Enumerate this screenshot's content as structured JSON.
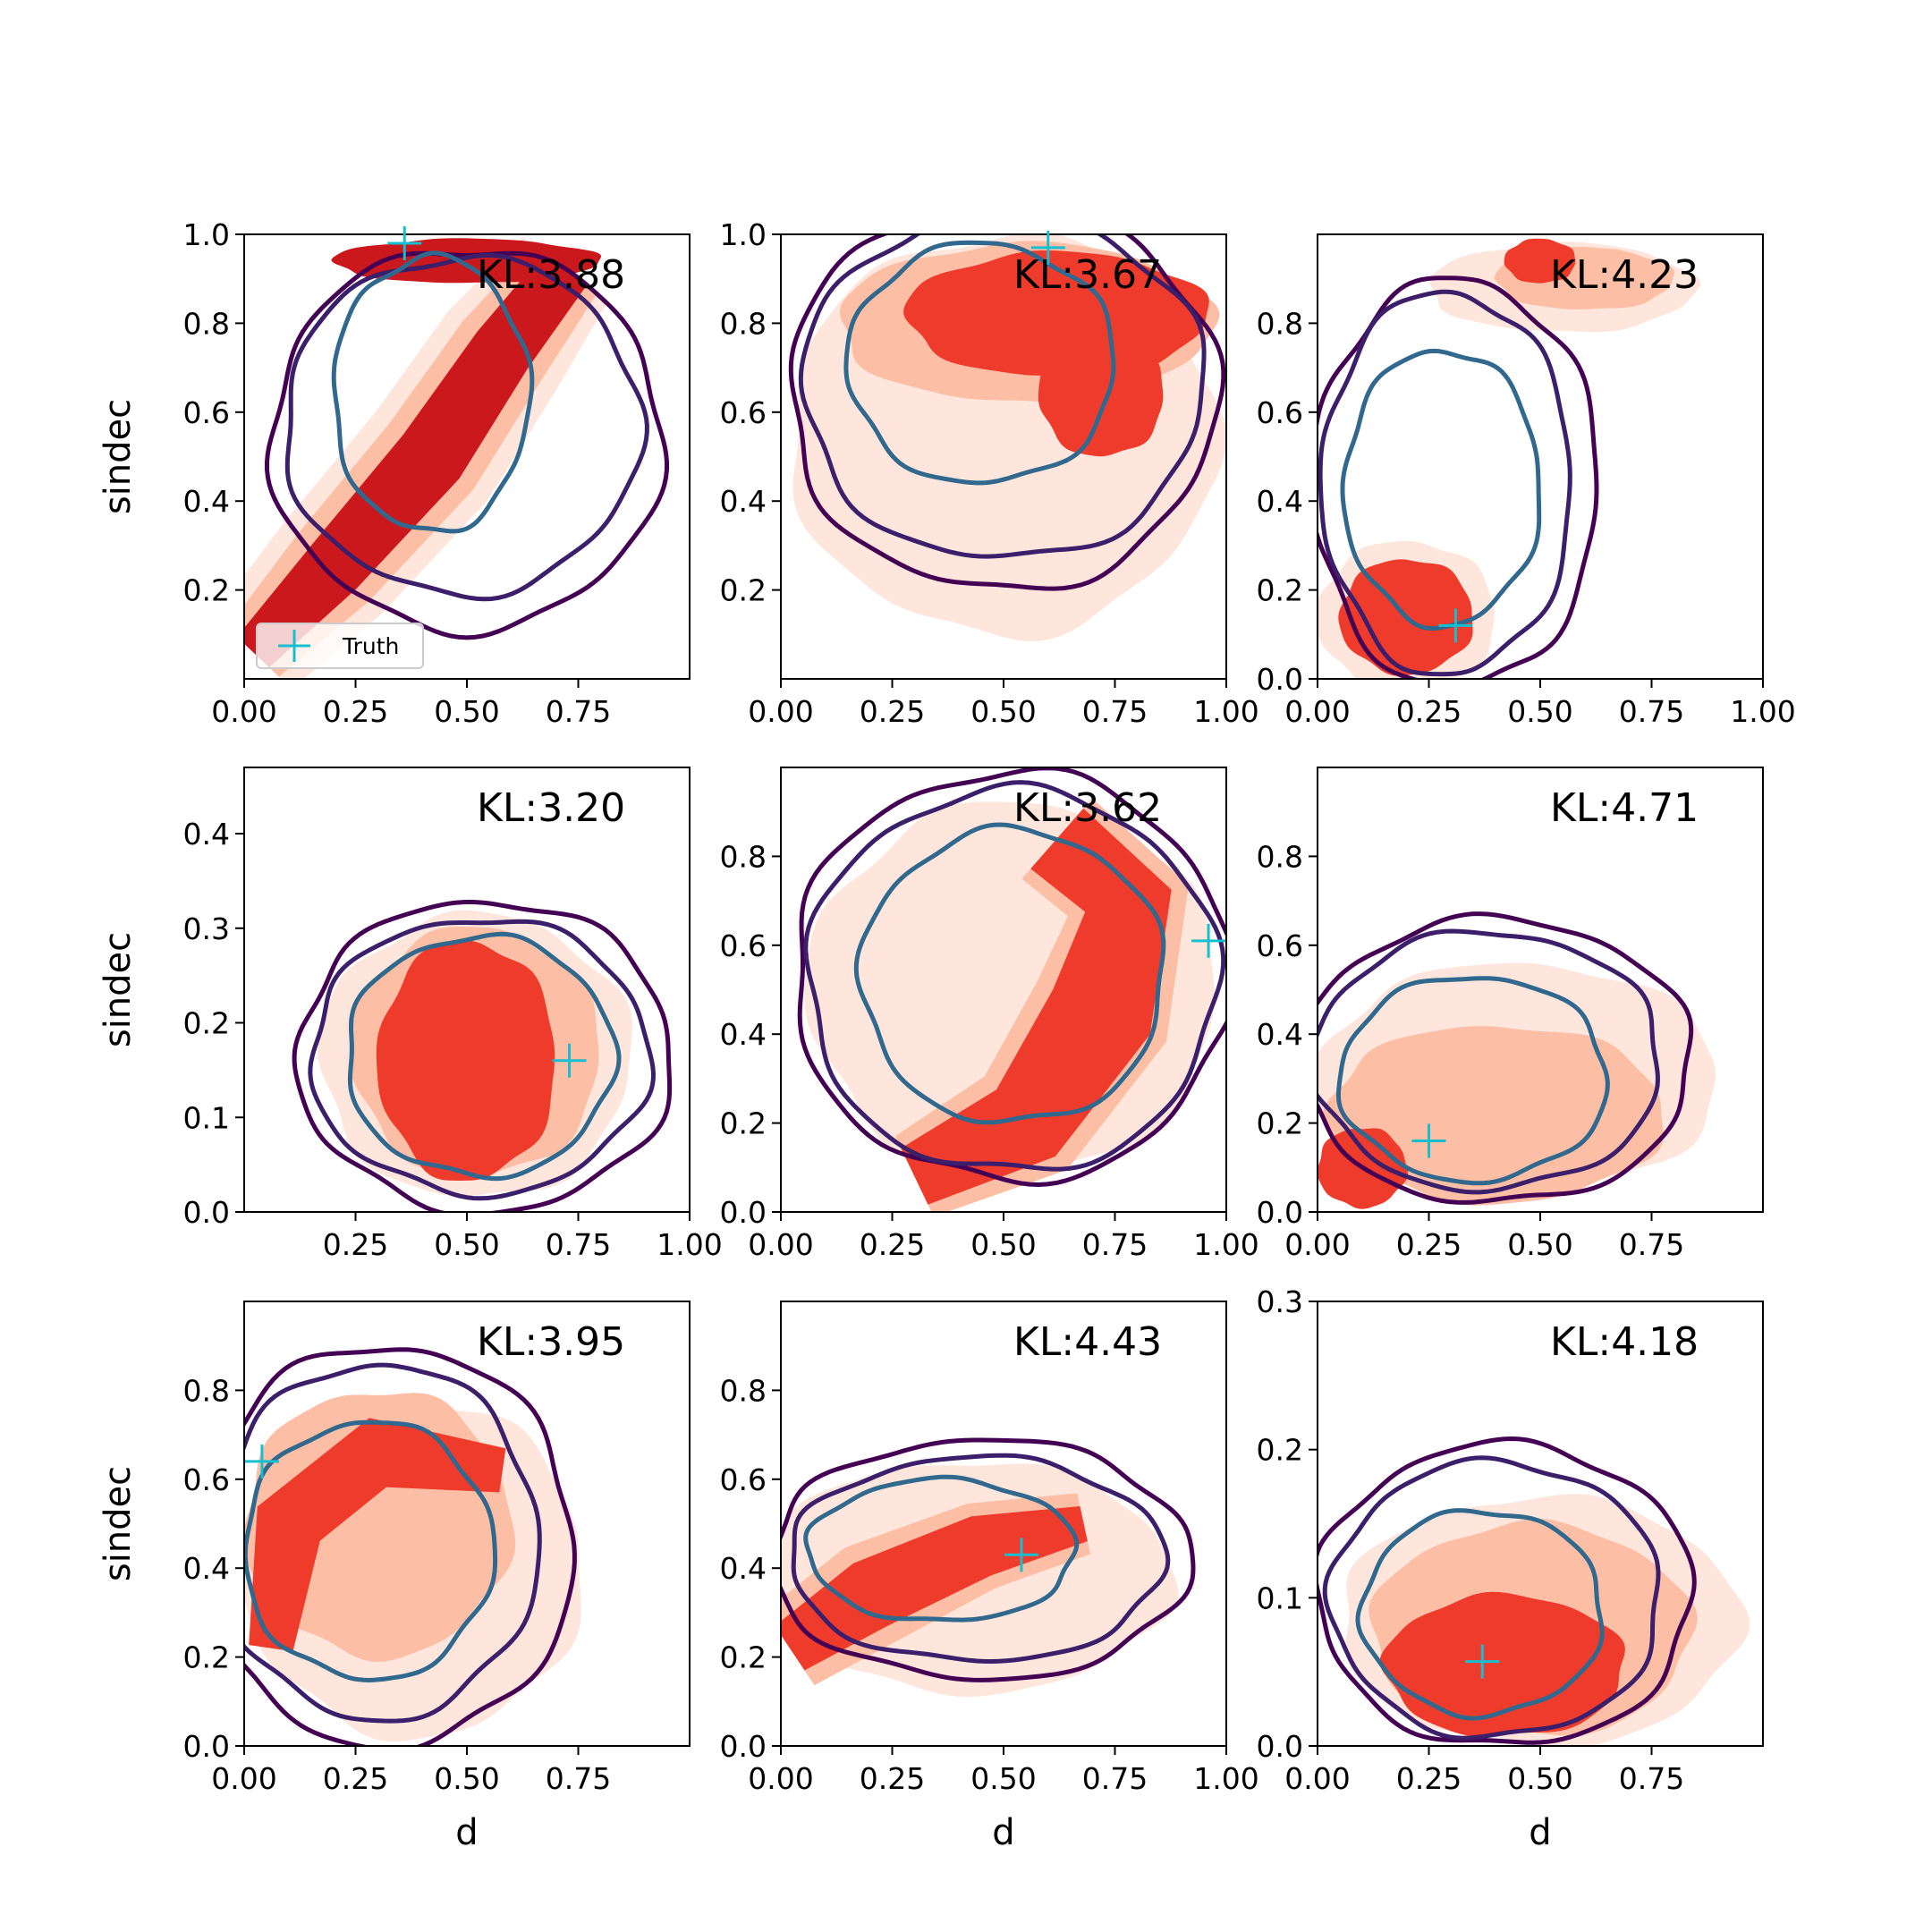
{
  "chart_data": {
    "type": "contour",
    "grid": "3x3",
    "ylabel": "sindec",
    "xlabel": "d",
    "legend": {
      "label": "Truth",
      "marker": "+",
      "color": "#17becf",
      "placement": "lower-left",
      "panel": 0
    },
    "colors": {
      "fill_levels": [
        "#fee6dc",
        "#fcbfa6",
        "#ef3b2c",
        "#cb181d"
      ],
      "contour_outer": "#440154",
      "contour_mid": "#3b1f6b",
      "contour_inner": "#31688e",
      "truth": "#17becf"
    },
    "panels": [
      {
        "kl": "KL:3.88",
        "xlim": [
          0,
          1.0
        ],
        "ylim": [
          0,
          1.0
        ],
        "xticks": [
          "0.00",
          "0.25",
          "0.50",
          "0.75"
        ],
        "yticks": [
          "0.2",
          "0.4",
          "0.6",
          "0.8",
          "1.0"
        ],
        "truth": [
          0.36,
          0.98
        ],
        "show_ylabel": true,
        "show_xlabel": false
      },
      {
        "kl": "KL:3.67",
        "xlim": [
          0,
          1.0
        ],
        "ylim": [
          0,
          1.0
        ],
        "xticks": [
          "0.00",
          "0.25",
          "0.50",
          "0.75",
          "1.00"
        ],
        "yticks": [
          "0.2",
          "0.4",
          "0.6",
          "0.8",
          "1.0"
        ],
        "truth": [
          0.6,
          0.97
        ],
        "show_ylabel": false,
        "show_xlabel": false
      },
      {
        "kl": "KL:4.23",
        "xlim": [
          0,
          1.0
        ],
        "ylim": [
          0,
          1.0
        ],
        "xticks": [
          "0.00",
          "0.25",
          "0.50",
          "0.75",
          "1.00"
        ],
        "yticks": [
          "0.0",
          "0.2",
          "0.4",
          "0.6",
          "0.8"
        ],
        "truth": [
          0.31,
          0.12
        ],
        "show_ylabel": false,
        "show_xlabel": false
      },
      {
        "kl": "KL:3.20",
        "xlim": [
          0,
          1.0
        ],
        "ylim": [
          0,
          0.47
        ],
        "xticks": [
          "0.25",
          "0.50",
          "0.75",
          "1.00"
        ],
        "yticks": [
          "0.0",
          "0.1",
          "0.2",
          "0.3",
          "0.4"
        ],
        "truth": [
          0.73,
          0.16
        ],
        "show_ylabel": true,
        "show_xlabel": false
      },
      {
        "kl": "KL:3.62",
        "xlim": [
          0,
          1.0
        ],
        "ylim": [
          0,
          1.0
        ],
        "xticks": [
          "0.00",
          "0.25",
          "0.50",
          "0.75",
          "1.00"
        ],
        "yticks": [
          "0.0",
          "0.2",
          "0.4",
          "0.6",
          "0.8"
        ],
        "truth": [
          0.96,
          0.61
        ],
        "show_ylabel": false,
        "show_xlabel": false
      },
      {
        "kl": "KL:4.71",
        "xlim": [
          0,
          1.0
        ],
        "ylim": [
          0,
          1.0
        ],
        "xticks": [
          "0.00",
          "0.25",
          "0.50",
          "0.75"
        ],
        "yticks": [
          "0.0",
          "0.2",
          "0.4",
          "0.6",
          "0.8"
        ],
        "truth": [
          0.25,
          0.16
        ],
        "show_ylabel": false,
        "show_xlabel": false
      },
      {
        "kl": "KL:3.95",
        "xlim": [
          0,
          1.0
        ],
        "ylim": [
          0,
          1.0
        ],
        "xticks": [
          "0.00",
          "0.25",
          "0.50",
          "0.75"
        ],
        "yticks": [
          "0.0",
          "0.2",
          "0.4",
          "0.6",
          "0.8"
        ],
        "truth": [
          0.04,
          0.64
        ],
        "show_ylabel": true,
        "show_xlabel": true
      },
      {
        "kl": "KL:4.43",
        "xlim": [
          0,
          1.0
        ],
        "ylim": [
          0,
          1.0
        ],
        "xticks": [
          "0.00",
          "0.25",
          "0.50",
          "0.75",
          "1.00"
        ],
        "yticks": [
          "0.0",
          "0.2",
          "0.4",
          "0.6",
          "0.8"
        ],
        "truth": [
          0.54,
          0.43
        ],
        "show_ylabel": false,
        "show_xlabel": true
      },
      {
        "kl": "KL:4.18",
        "xlim": [
          0,
          1.0
        ],
        "ylim": [
          0,
          0.3
        ],
        "xticks": [
          "0.00",
          "0.25",
          "0.50",
          "0.75"
        ],
        "yticks": [
          "0.0",
          "0.1",
          "0.2",
          "0.3"
        ],
        "truth": [
          0.37,
          0.057
        ],
        "show_ylabel": false,
        "show_xlabel": true
      }
    ]
  }
}
